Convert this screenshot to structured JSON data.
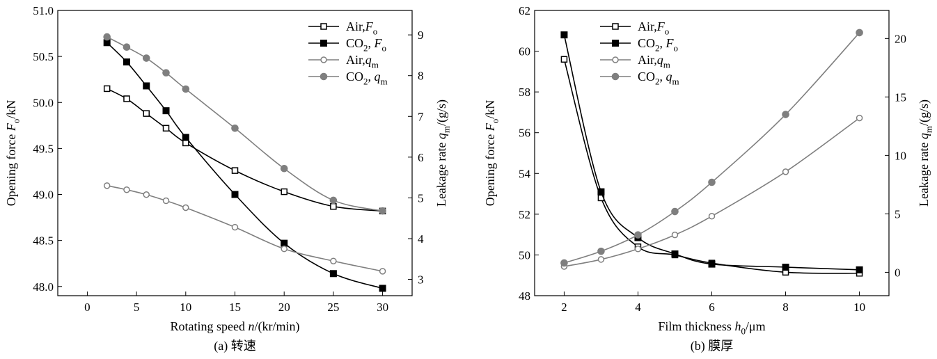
{
  "chart_data": [
    {
      "type": "line",
      "caption": "(a) 转速",
      "xlabel": "Rotating speed n/(kr/min)",
      "ylabel_left": "Opening force Fo/kN",
      "ylabel_right": "Leakage rate qm/(g/s)",
      "xlim": [
        -3,
        33
      ],
      "xticks": [
        0,
        5,
        10,
        15,
        20,
        25,
        30
      ],
      "ylim_left": [
        47.9,
        51.0
      ],
      "yticks_left": [
        "48.0",
        "48.5",
        "49.0",
        "49.5",
        "50.0",
        "50.5",
        "51.0"
      ],
      "ylim_right": [
        2.6,
        9.6
      ],
      "yticks_right": [
        "3",
        "4",
        "5",
        "6",
        "7",
        "8",
        "9"
      ],
      "series": [
        {
          "name": "Air,Fo",
          "axis": "left",
          "marker": "open-square",
          "color": "#000000",
          "x": [
            2,
            4,
            6,
            8,
            10,
            15,
            20,
            25,
            30
          ],
          "values": [
            50.15,
            50.04,
            49.88,
            49.72,
            49.56,
            49.26,
            49.03,
            48.87,
            48.82
          ]
        },
        {
          "name": "CO2, Fo",
          "axis": "left",
          "marker": "filled-square",
          "color": "#000000",
          "x": [
            2,
            4,
            6,
            8,
            10,
            15,
            20,
            25,
            30
          ],
          "values": [
            50.65,
            50.44,
            50.18,
            49.91,
            49.62,
            49.0,
            48.47,
            48.14,
            47.98
          ]
        },
        {
          "name": "Air,qm",
          "axis": "right",
          "marker": "open-circle",
          "color": "#7f7f7f",
          "x": [
            2,
            4,
            6,
            8,
            10,
            15,
            20,
            25,
            30
          ],
          "values": [
            5.3,
            5.2,
            5.08,
            4.93,
            4.76,
            4.28,
            3.75,
            3.45,
            3.2
          ]
        },
        {
          "name": "CO2, qm",
          "axis": "right",
          "marker": "filled-circle",
          "color": "#7f7f7f",
          "x": [
            2,
            4,
            6,
            8,
            10,
            15,
            20,
            25,
            30
          ],
          "values": [
            8.95,
            8.7,
            8.43,
            8.07,
            7.67,
            6.71,
            5.72,
            4.94,
            4.68
          ]
        }
      ],
      "legend": [
        "Air,Fo",
        "CO2, Fo",
        "Air,qm",
        "CO2, qm"
      ],
      "legend_position": "top-right"
    },
    {
      "type": "line",
      "caption": "(b) 膜厚",
      "xlabel": "Film thickness h0/μm",
      "ylabel_left": "Opening force Fo/kN",
      "ylabel_right": "Leakage rate qm/(g/s)",
      "xlim": [
        1.2,
        10.8
      ],
      "xticks": [
        2,
        4,
        6,
        8,
        10
      ],
      "ylim_left": [
        48,
        62
      ],
      "yticks_left": [
        "48",
        "50",
        "52",
        "54",
        "56",
        "58",
        "60",
        "62"
      ],
      "ylim_right": [
        -2,
        22.4
      ],
      "yticks_right": [
        "0",
        "5",
        "10",
        "15",
        "20"
      ],
      "series": [
        {
          "name": "Air,Fo",
          "axis": "left",
          "marker": "open-square",
          "color": "#000000",
          "x": [
            2,
            3,
            4,
            5,
            6,
            8,
            10
          ],
          "values": [
            59.6,
            52.8,
            50.4,
            50.0,
            49.6,
            49.15,
            49.1
          ]
        },
        {
          "name": "CO2, Fo",
          "axis": "left",
          "marker": "filled-square",
          "color": "#000000",
          "x": [
            2,
            3,
            4,
            5,
            6,
            8,
            10
          ],
          "values": [
            60.8,
            53.1,
            50.85,
            50.05,
            49.55,
            49.4,
            49.27
          ]
        },
        {
          "name": "Air,qm",
          "axis": "right",
          "marker": "open-circle",
          "color": "#7f7f7f",
          "x": [
            2,
            3,
            4,
            5,
            6,
            8,
            10
          ],
          "values": [
            0.5,
            1.1,
            2.0,
            3.2,
            4.8,
            8.6,
            13.2
          ]
        },
        {
          "name": "CO2, qm",
          "axis": "right",
          "marker": "filled-circle",
          "color": "#7f7f7f",
          "x": [
            2,
            3,
            4,
            5,
            6,
            8,
            10
          ],
          "values": [
            0.8,
            1.8,
            3.2,
            5.2,
            7.7,
            13.5,
            20.5
          ]
        }
      ],
      "legend": [
        "Air,Fo",
        "CO2, Fo",
        "Air,qm",
        "CO2, qm"
      ],
      "legend_position": "top-left"
    }
  ]
}
